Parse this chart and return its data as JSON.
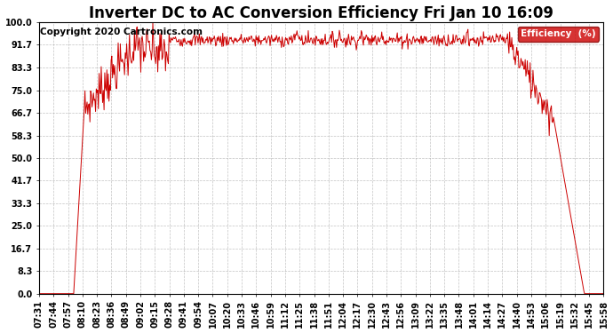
{
  "title": "Inverter DC to AC Conversion Efficiency Fri Jan 10 16:09",
  "copyright": "Copyright 2020 Cartronics.com",
  "legend_label": "Efficiency  (%)",
  "legend_bg": "#cc0000",
  "legend_fg": "#ffffff",
  "line_color": "#cc0000",
  "bg_color": "#ffffff",
  "plot_bg_color": "#ffffff",
  "grid_color": "#aaaaaa",
  "ytick_labels": [
    "0.0",
    "8.3",
    "16.7",
    "25.0",
    "33.3",
    "41.7",
    "50.0",
    "58.3",
    "66.7",
    "75.0",
    "83.3",
    "91.7",
    "100.0"
  ],
  "ytick_values": [
    0.0,
    8.3,
    16.7,
    25.0,
    33.3,
    41.7,
    50.0,
    58.3,
    66.7,
    75.0,
    83.3,
    91.7,
    100.0
  ],
  "xtick_labels": [
    "07:31",
    "07:44",
    "07:57",
    "08:10",
    "08:23",
    "08:36",
    "08:49",
    "09:02",
    "09:15",
    "09:28",
    "09:41",
    "09:54",
    "10:07",
    "10:20",
    "10:33",
    "10:46",
    "10:59",
    "11:12",
    "11:25",
    "11:38",
    "11:51",
    "12:04",
    "12:17",
    "12:30",
    "12:43",
    "12:56",
    "13:09",
    "13:22",
    "13:35",
    "13:48",
    "14:01",
    "14:14",
    "14:27",
    "14:40",
    "14:53",
    "15:06",
    "15:19",
    "15:32",
    "15:45",
    "15:58"
  ],
  "ylim": [
    0,
    100
  ],
  "title_fontsize": 12,
  "copyright_fontsize": 7.5,
  "tick_fontsize": 7
}
